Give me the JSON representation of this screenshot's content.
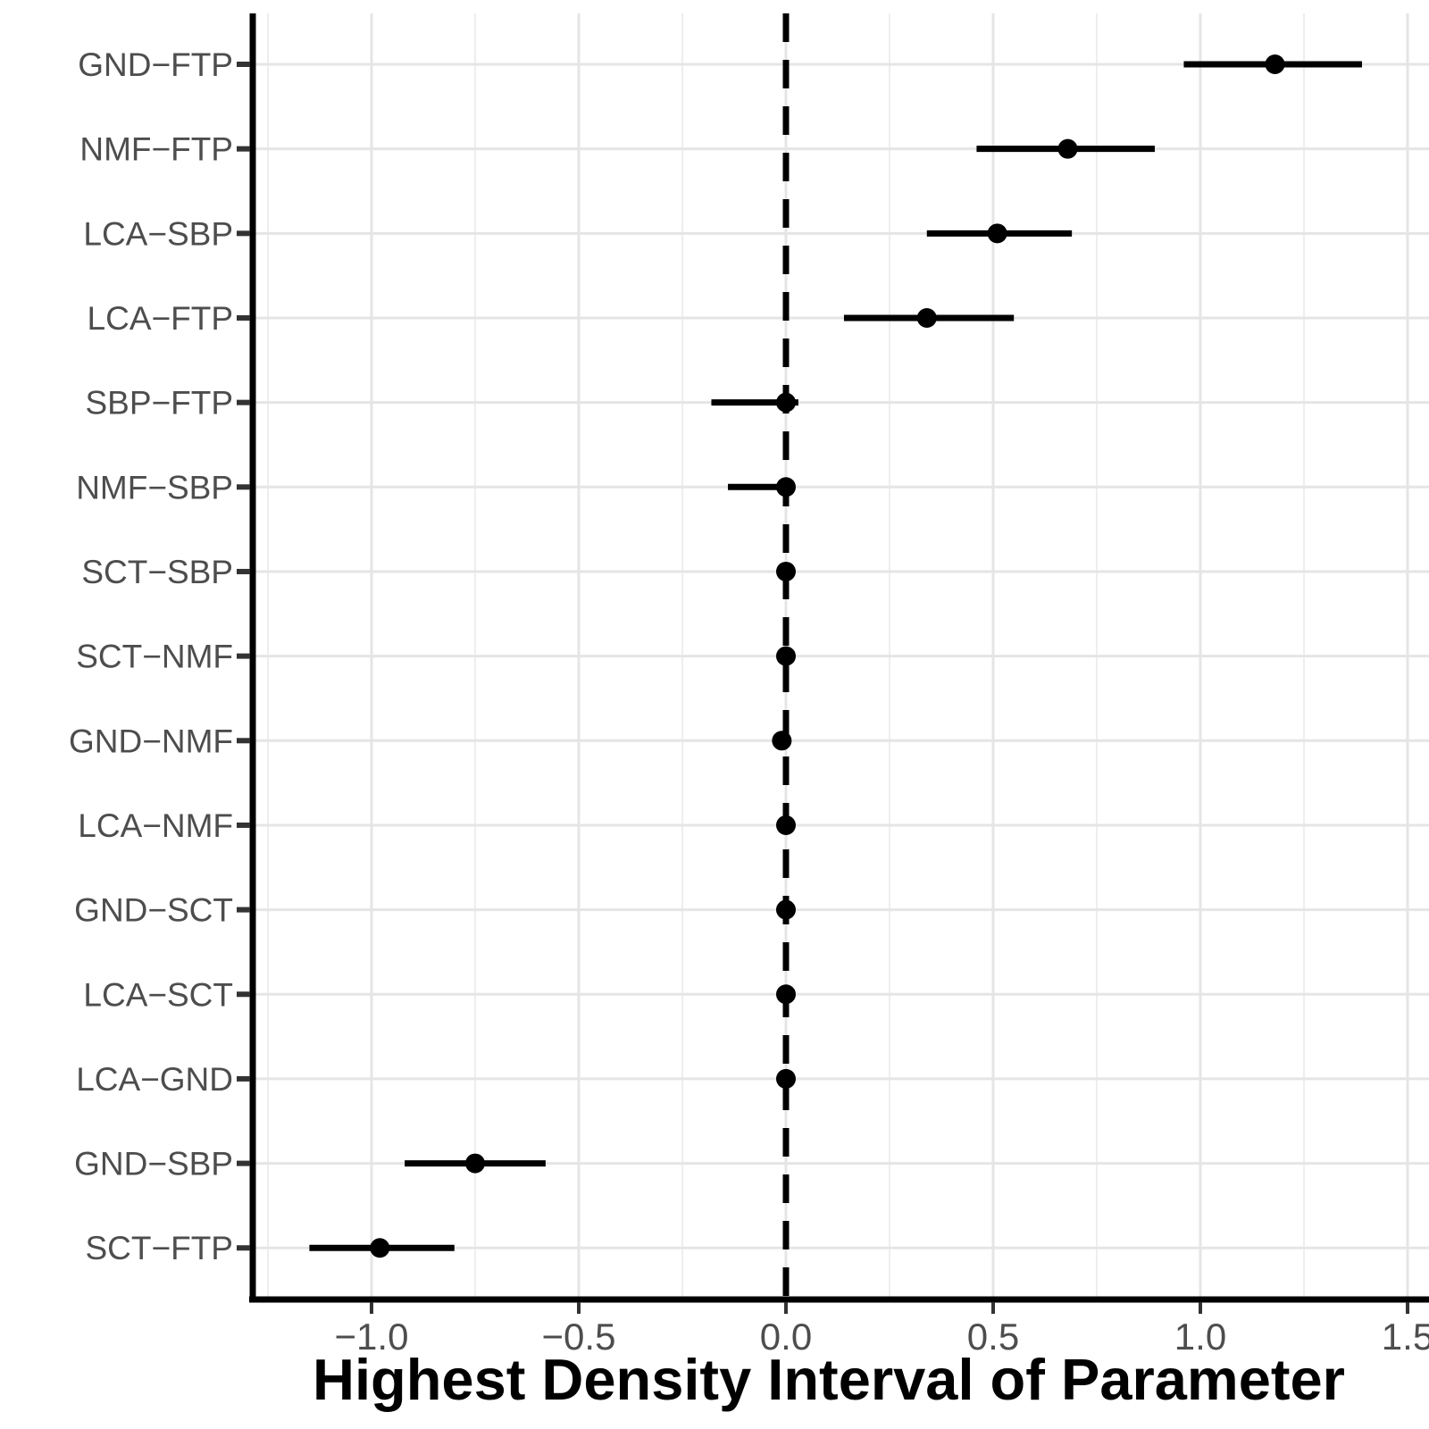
{
  "chart_data": {
    "type": "scatter",
    "subtype": "pointrange-forest-plot",
    "title": "",
    "xlabel": "Highest Density Interval of Parameter",
    "ylabel": "",
    "xlim": [
      -1.28,
      1.55
    ],
    "x_ticks": [
      -1.0,
      -0.5,
      0.0,
      0.5,
      1.0,
      1.5
    ],
    "x_tick_labels": [
      "−1.0",
      "−0.5",
      "0.0",
      "0.5",
      "1.0",
      "1.5"
    ],
    "x_minor_ticks": [
      -1.25,
      -0.75,
      -0.25,
      0.25,
      0.75,
      1.25
    ],
    "reference_line_x": 0.0,
    "grid": true,
    "legend": "none",
    "categories": [
      "GND−FTP",
      "NMF−FTP",
      "LCA−SBP",
      "LCA−FTP",
      "SBP−FTP",
      "NMF−SBP",
      "SCT−SBP",
      "SCT−NMF",
      "GND−NMF",
      "LCA−NMF",
      "GND−SCT",
      "LCA−SCT",
      "LCA−GND",
      "GND−SBP",
      "SCT−FTP"
    ],
    "series": [
      {
        "name": "Highest Density Interval",
        "points": [
          {
            "label": "GND−FTP",
            "estimate": 1.18,
            "lower": 0.96,
            "upper": 1.39
          },
          {
            "label": "NMF−FTP",
            "estimate": 0.68,
            "lower": 0.46,
            "upper": 0.89
          },
          {
            "label": "LCA−SBP",
            "estimate": 0.51,
            "lower": 0.34,
            "upper": 0.69
          },
          {
            "label": "LCA−FTP",
            "estimate": 0.34,
            "lower": 0.14,
            "upper": 0.55
          },
          {
            "label": "SBP−FTP",
            "estimate": 0.0,
            "lower": -0.18,
            "upper": 0.03
          },
          {
            "label": "NMF−SBP",
            "estimate": 0.0,
            "lower": -0.14,
            "upper": 0.02
          },
          {
            "label": "SCT−SBP",
            "estimate": 0.0,
            "lower": -0.02,
            "upper": 0.02
          },
          {
            "label": "SCT−NMF",
            "estimate": 0.0,
            "lower": -0.02,
            "upper": 0.02
          },
          {
            "label": "GND−NMF",
            "estimate": -0.01,
            "lower": -0.03,
            "upper": 0.01
          },
          {
            "label": "LCA−NMF",
            "estimate": 0.0,
            "lower": -0.02,
            "upper": 0.02
          },
          {
            "label": "GND−SCT",
            "estimate": 0.0,
            "lower": -0.02,
            "upper": 0.02
          },
          {
            "label": "LCA−SCT",
            "estimate": 0.0,
            "lower": -0.02,
            "upper": 0.02
          },
          {
            "label": "LCA−GND",
            "estimate": 0.0,
            "lower": -0.02,
            "upper": 0.02
          },
          {
            "label": "GND−SBP",
            "estimate": -0.75,
            "lower": -0.92,
            "upper": -0.58
          },
          {
            "label": "SCT−FTP",
            "estimate": -0.98,
            "lower": -1.15,
            "upper": -0.8
          }
        ]
      }
    ],
    "style": {
      "point_color": "#000000",
      "interval_color": "#000000",
      "reference_line_color": "#000000",
      "major_gridline_color": "#e5e5e5",
      "minor_gridline_color": "#eeeeee",
      "axis_line_color": "#000000",
      "tick_mark_color": "#333333",
      "axis_text_color": "#4d4d4d",
      "axis_title_color": "#000000",
      "background_color": "#ffffff"
    }
  }
}
